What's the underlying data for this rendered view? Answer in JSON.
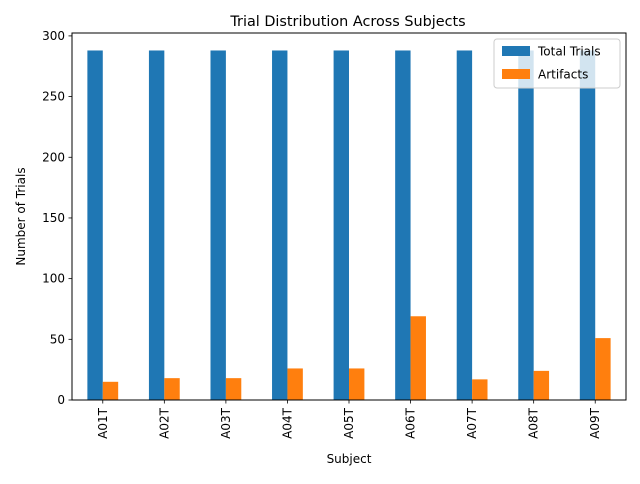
{
  "chart_data": {
    "type": "bar",
    "title": "Trial Distribution Across Subjects",
    "xlabel": "Subject",
    "ylabel": "Number of Trials",
    "categories": [
      "A01T",
      "A02T",
      "A03T",
      "A04T",
      "A05T",
      "A06T",
      "A07T",
      "A08T",
      "A09T"
    ],
    "series": [
      {
        "name": "Total Trials",
        "color": "#1f77b4",
        "values": [
          288,
          288,
          288,
          288,
          288,
          288,
          288,
          288,
          288
        ]
      },
      {
        "name": "Artifacts",
        "color": "#ff7f0e",
        "values": [
          15,
          18,
          18,
          26,
          26,
          69,
          17,
          24,
          51
        ]
      }
    ],
    "ylim": [
      0,
      302.4
    ],
    "yticks": [
      0,
      50,
      100,
      150,
      200,
      250,
      300
    ],
    "grid": false,
    "legend_position": "top-right",
    "x_tick_rotation": "vertical"
  }
}
